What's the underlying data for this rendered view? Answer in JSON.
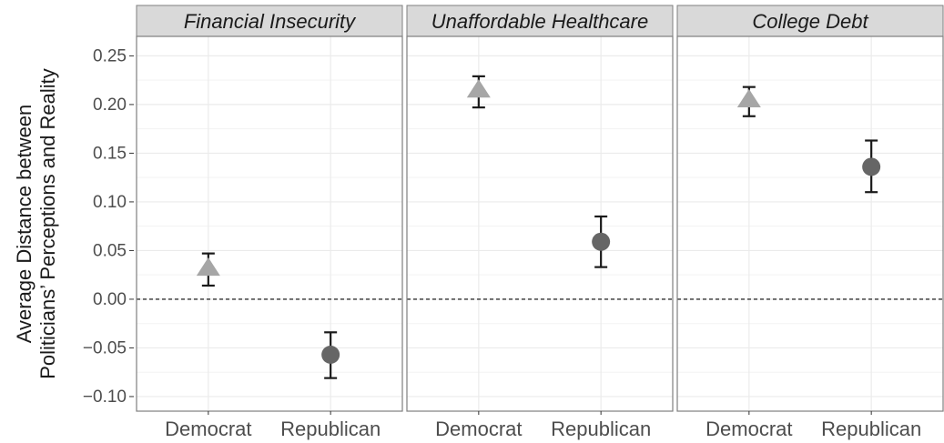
{
  "chart_data": {
    "type": "scatter",
    "subtype": "point-errorbar-faceted",
    "ylabel_lines": [
      "Average Distance between",
      "Politicians’ Perceptions and Reality"
    ],
    "xlabel": "",
    "ylim": [
      -0.115,
      0.27
    ],
    "yticks": [
      -0.1,
      -0.05,
      0.0,
      0.05,
      0.1,
      0.15,
      0.2,
      0.25
    ],
    "ytick_labels": [
      "−0.10",
      "−0.05",
      "0.00",
      "0.05",
      "0.10",
      "0.15",
      "0.20",
      "0.25"
    ],
    "categories": [
      "Democrat",
      "Republican"
    ],
    "reference_line": 0,
    "grid": true,
    "colors": {
      "democrat": "#a6a6a6",
      "republican": "#666666",
      "errorbar": "#1a1a1a",
      "grid": "#ebebeb",
      "strip": "#d9d9d9",
      "panel_border": "#7f7f7f"
    },
    "markers": {
      "Democrat": "triangle",
      "Republican": "circle"
    },
    "panels": [
      {
        "title": "Financial Insecurity",
        "points": [
          {
            "category": "Democrat",
            "y": 0.032,
            "lo": 0.014,
            "hi": 0.047
          },
          {
            "category": "Republican",
            "y": -0.057,
            "lo": -0.081,
            "hi": -0.034
          }
        ]
      },
      {
        "title": "Unaffordable Healthcare",
        "points": [
          {
            "category": "Democrat",
            "y": 0.215,
            "lo": 0.197,
            "hi": 0.229
          },
          {
            "category": "Republican",
            "y": 0.059,
            "lo": 0.033,
            "hi": 0.085
          }
        ]
      },
      {
        "title": "College Debt",
        "points": [
          {
            "category": "Democrat",
            "y": 0.205,
            "lo": 0.188,
            "hi": 0.218
          },
          {
            "category": "Republican",
            "y": 0.136,
            "lo": 0.11,
            "hi": 0.163
          }
        ]
      }
    ]
  }
}
